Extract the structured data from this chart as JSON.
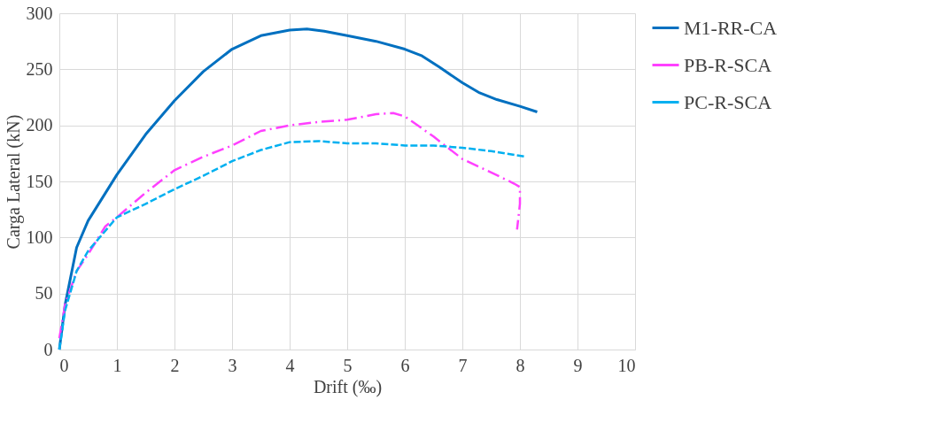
{
  "chart_data": {
    "type": "line",
    "xlabel": "Drift (‰)",
    "ylabel": "Carga Lateral  (kN)",
    "xlim": [
      0,
      10
    ],
    "xticks": [
      0,
      1,
      2,
      3,
      4,
      5,
      6,
      7,
      8,
      9,
      10
    ],
    "ylim": [
      0,
      300
    ],
    "yticks": [
      0,
      50,
      100,
      150,
      200,
      250,
      300
    ],
    "grid": true,
    "legend": "right",
    "marker": "none",
    "series": [
      {
        "name": "M1-RR-CA",
        "color": "#0070c0",
        "line_style": "solid",
        "x": [
          0,
          0.1,
          0.3,
          0.5,
          1,
          1.5,
          2,
          2.5,
          3,
          3.5,
          4,
          4.3,
          4.6,
          5,
          5.5,
          6,
          6.3,
          6.6,
          7,
          7.3,
          7.6,
          8,
          8.3
        ],
        "values": [
          0,
          40,
          91,
          115,
          156,
          192,
          222,
          248,
          268,
          280,
          285,
          286,
          284,
          280,
          275,
          268,
          262,
          252,
          238,
          229,
          223,
          217,
          212
        ]
      },
      {
        "name": "PB-R-SCA",
        "color": "#ff40ff",
        "line_style": "dashdot",
        "x": [
          0,
          0.1,
          0.3,
          0.5,
          0.8,
          1,
          1.5,
          2,
          2.5,
          3,
          3.5,
          4,
          4.5,
          5,
          5.5,
          5.8,
          6,
          6.5,
          7,
          7.5,
          7.9,
          8,
          8,
          7.95
        ],
        "values": [
          10,
          40,
          70,
          85,
          110,
          118,
          140,
          160,
          172,
          182,
          195,
          200,
          203,
          205,
          210,
          211,
          208,
          190,
          170,
          158,
          148,
          145,
          130,
          107
        ]
      },
      {
        "name": "PC-R-SCA",
        "color": "#00b0f0",
        "line_style": "dashed",
        "x": [
          0,
          0.1,
          0.3,
          0.5,
          1,
          1.5,
          2,
          2.5,
          3,
          3.5,
          4,
          4.5,
          5,
          5.5,
          6,
          6.5,
          7,
          7.5,
          8.1
        ],
        "values": [
          0,
          35,
          70,
          88,
          118,
          130,
          143,
          155,
          168,
          178,
          185,
          186,
          184,
          184,
          182,
          182,
          180,
          177,
          172
        ]
      }
    ]
  }
}
